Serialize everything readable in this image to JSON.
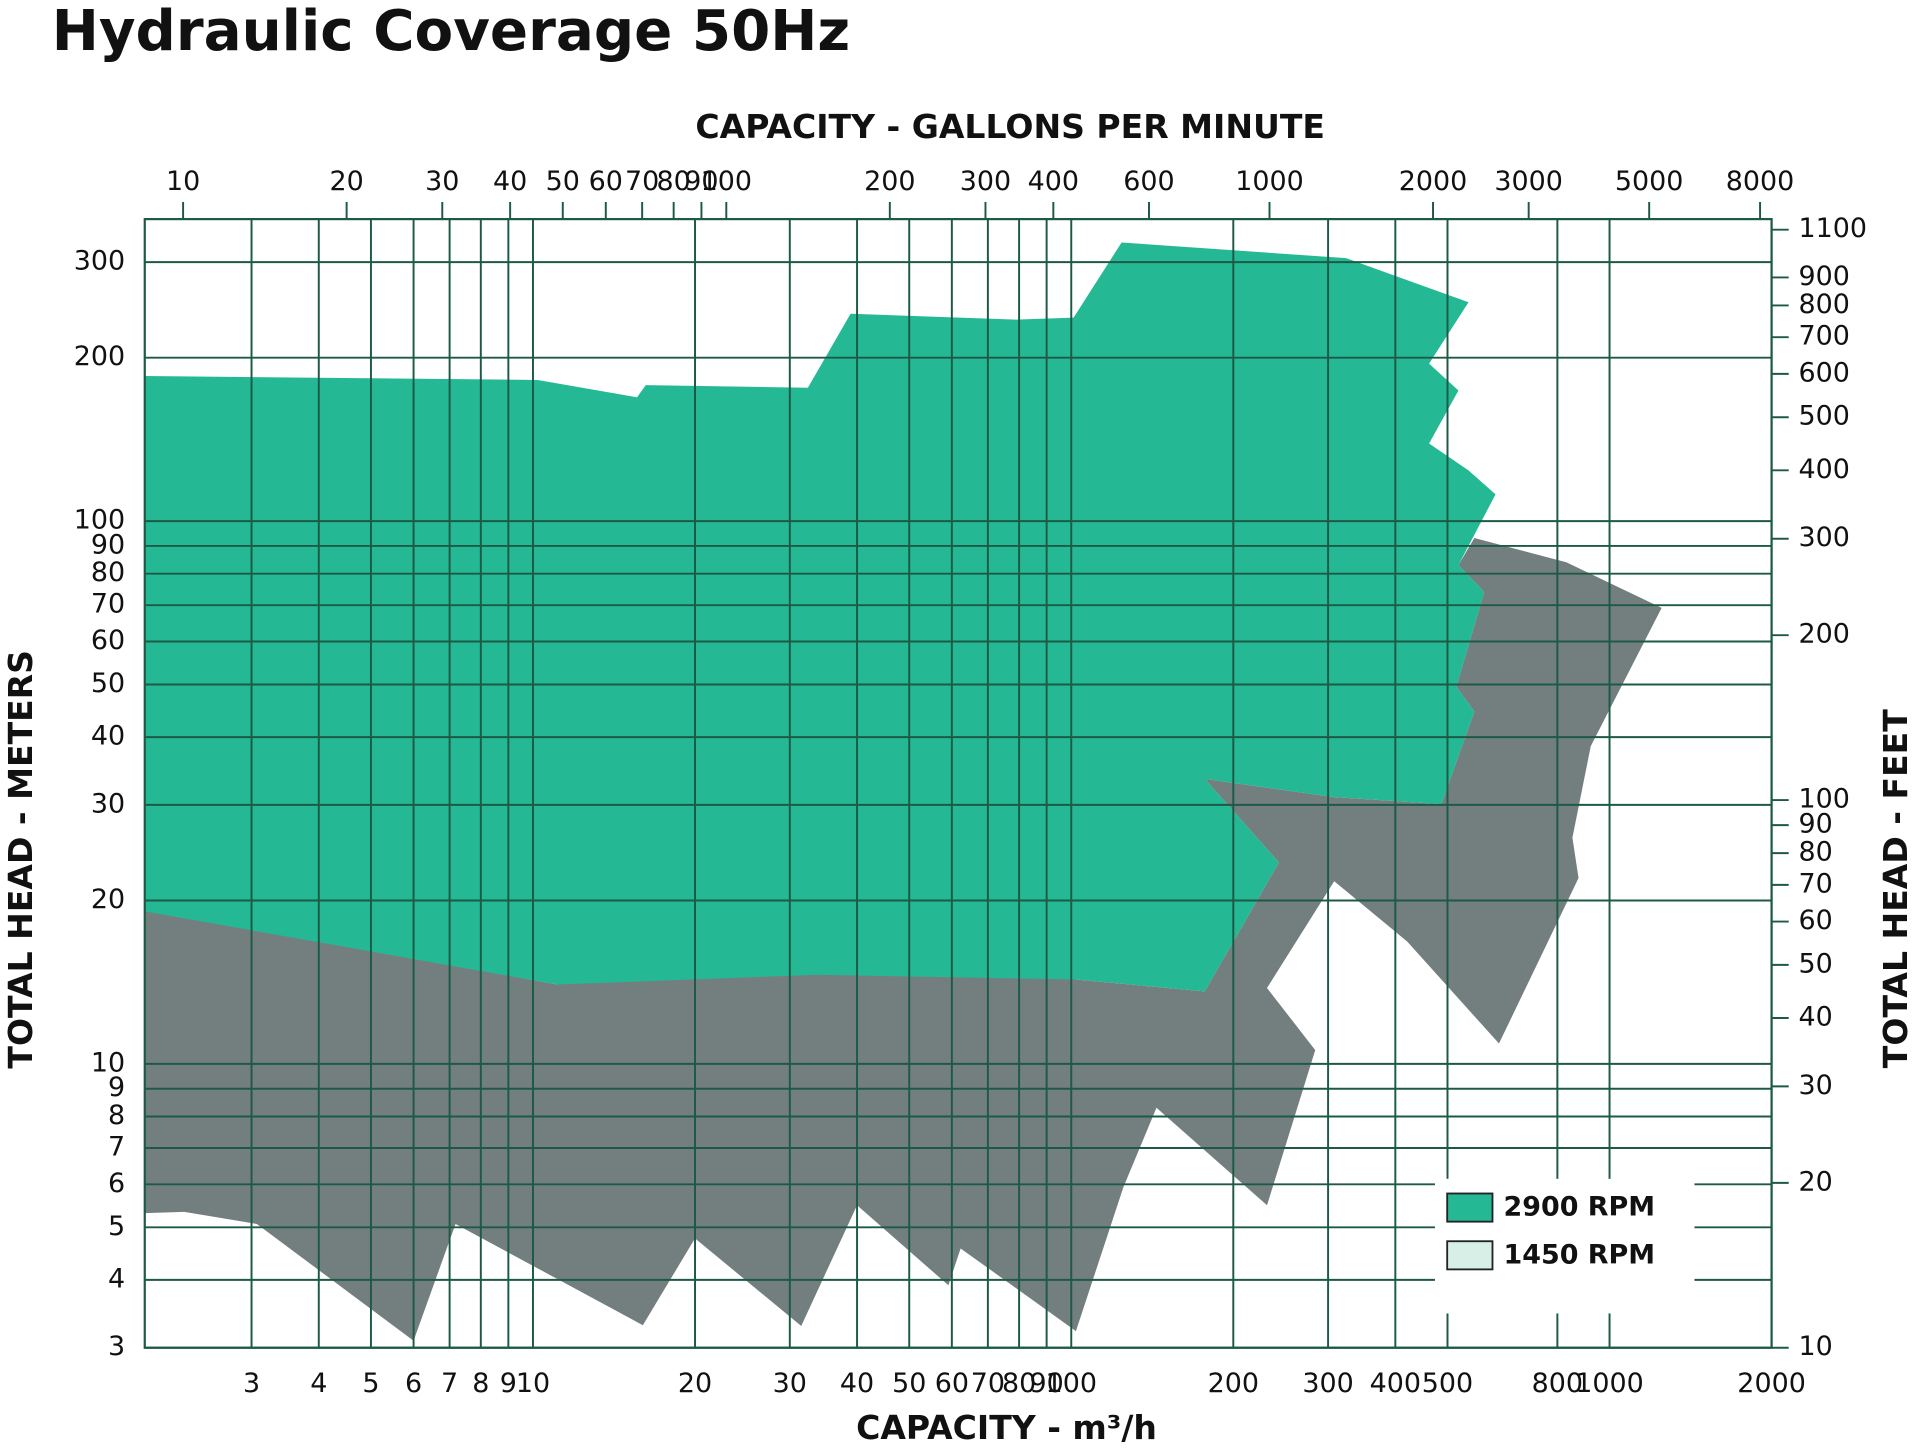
{
  "chart_data": {
    "type": "area",
    "title": "Hydraulic Coverage 50Hz",
    "x_label": "CAPACITY - m³/h",
    "x2_label": "CAPACITY - GALLONS PER MINUTE",
    "y_label": "TOTAL HEAD - METERS",
    "y2_label": "TOTAL HEAD - FEET",
    "log_scale": true,
    "grid": true,
    "grid_color": "#1d5a46",
    "legend": "lower right",
    "xlim": [
      1.9,
      2000
    ],
    "x2lim": [
      8.5,
      8400
    ],
    "ylim": [
      3,
      360
    ],
    "y2lim": [
      10,
      1150
    ],
    "xticks": [
      3,
      4,
      5,
      6,
      7,
      8,
      9,
      10,
      20,
      30,
      40,
      50,
      60,
      70,
      80,
      90,
      100,
      200,
      300,
      400,
      500,
      800,
      1000,
      2000
    ],
    "x2ticks": [
      10,
      20,
      30,
      40,
      50,
      60,
      70,
      80,
      90,
      100,
      200,
      300,
      400,
      600,
      1000,
      2000,
      3000,
      5000,
      8000
    ],
    "yticks": [
      3,
      4,
      5,
      6,
      7,
      8,
      9,
      10,
      20,
      30,
      40,
      50,
      60,
      70,
      80,
      90,
      100,
      200,
      300
    ],
    "y2ticks": [
      10,
      20,
      30,
      40,
      50,
      60,
      70,
      80,
      90,
      100,
      200,
      300,
      400,
      500,
      600,
      700,
      800,
      900,
      1100
    ],
    "series": [
      {
        "name": "2900 RPM",
        "color": "#24b994",
        "legend_color": "#24b994",
        "x": [
          1.9,
          10.2,
          15.6,
          16.2,
          32.4,
          38.9,
          78.9,
          101,
          124,
          324,
          547,
          462,
          524,
          462,
          547,
          614,
          524,
          585,
          519,
          561,
          487,
          308,
          177,
          243,
          177,
          102,
          33.8,
          11.1,
          1.9
        ],
        "y": [
          185,
          182,
          169,
          178,
          176,
          241,
          235,
          237,
          326,
          305,
          253,
          195,
          174,
          139,
          124,
          112,
          83,
          74,
          49.5,
          44.6,
          30.1,
          31.0,
          33.5,
          23.5,
          13.6,
          14.3,
          14.6,
          14.0,
          19.1
        ]
      },
      {
        "name": "1450 RPM",
        "color": "#737f7f",
        "legend_color": "#d8efe8",
        "x": [
          1.9,
          11.1,
          11.9,
          33.8,
          102,
          177,
          243,
          177,
          308,
          487,
          561,
          519,
          585,
          524,
          561,
          831,
          1250,
          923,
          853,
          876,
          623,
          421,
          308,
          231,
          284,
          231,
          144,
          125,
          102,
          62.3,
          59.1,
          40,
          31.5,
          20.0,
          16.0,
          7.18,
          6.0,
          3.07,
          2.25,
          1.9
        ],
        "y": [
          19.3,
          14.0,
          17.5,
          16.8,
          14.3,
          13.6,
          23.5,
          33.5,
          31.0,
          30.1,
          44.6,
          49.5,
          74,
          83,
          93.1,
          84,
          69.2,
          38.5,
          26.1,
          22.0,
          10.9,
          16.8,
          21.7,
          13.8,
          10.6,
          5.49,
          8.3,
          5.93,
          3.22,
          4.57,
          3.91,
          5.49,
          3.29,
          4.77,
          3.3,
          5.07,
          3.09,
          5.07,
          5.34,
          5.31
        ]
      }
    ]
  }
}
